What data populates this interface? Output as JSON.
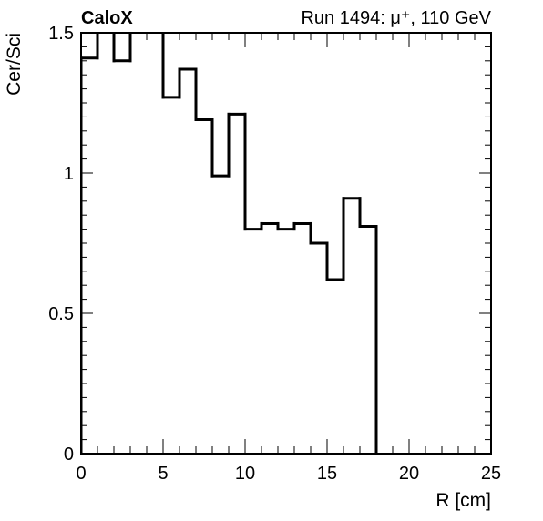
{
  "chart_data": {
    "type": "histogram-step",
    "experiment_label": "CaloX",
    "run_label": "Run 1494:   μ⁺, 110 GeV",
    "xlabel": "R [cm]",
    "ylabel": "Cer/Sci",
    "xlim": [
      0,
      25
    ],
    "ylim": [
      0,
      1.5
    ],
    "x_ticks": [
      0,
      5,
      10,
      15,
      20,
      25
    ],
    "x_tick_labels": [
      "0",
      "5",
      "10",
      "15",
      "20",
      "25"
    ],
    "y_ticks": [
      0,
      0.5,
      1,
      1.5
    ],
    "y_tick_labels": [
      "0",
      "0.5",
      "1",
      "1.5"
    ],
    "grid": false,
    "line_color": "#000000",
    "bin_edges": [
      0,
      1,
      2,
      3,
      4,
      5,
      6,
      7,
      8,
      9,
      10,
      11,
      12,
      13,
      14,
      15,
      16,
      17,
      18
    ],
    "values": [
      1.41,
      1.58,
      1.4,
      1.6,
      1.6,
      1.27,
      1.37,
      1.19,
      0.99,
      1.21,
      0.8,
      0.82,
      0.8,
      0.82,
      0.75,
      0.62,
      0.91,
      0.81
    ]
  }
}
